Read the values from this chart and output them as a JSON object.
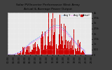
{
  "title": "Solar PV/Inverter Performance West Array",
  "subtitle": "Actual & Average Power Output",
  "outer_bg": "#404040",
  "plot_bg": "#e8e8e8",
  "bar_color": "#cc0000",
  "avg_line_color": "#0066ff",
  "avg_line_color2": "#ff00ff",
  "grid_color": "#ffffff",
  "ylim": [
    0,
    4000
  ],
  "ytick_labels": [
    "0",
    "500",
    "1k",
    "1.5k",
    "2k",
    "2.5k",
    "3k",
    "3.5k",
    "4k"
  ],
  "ytick_values": [
    0,
    500,
    1000,
    1500,
    2000,
    2500,
    3000,
    3500,
    4000
  ],
  "title_fontsize": 3.2,
  "tick_fontsize": 2.5,
  "legend_fontsize": 2.4,
  "n_points": 288,
  "seed": 42
}
